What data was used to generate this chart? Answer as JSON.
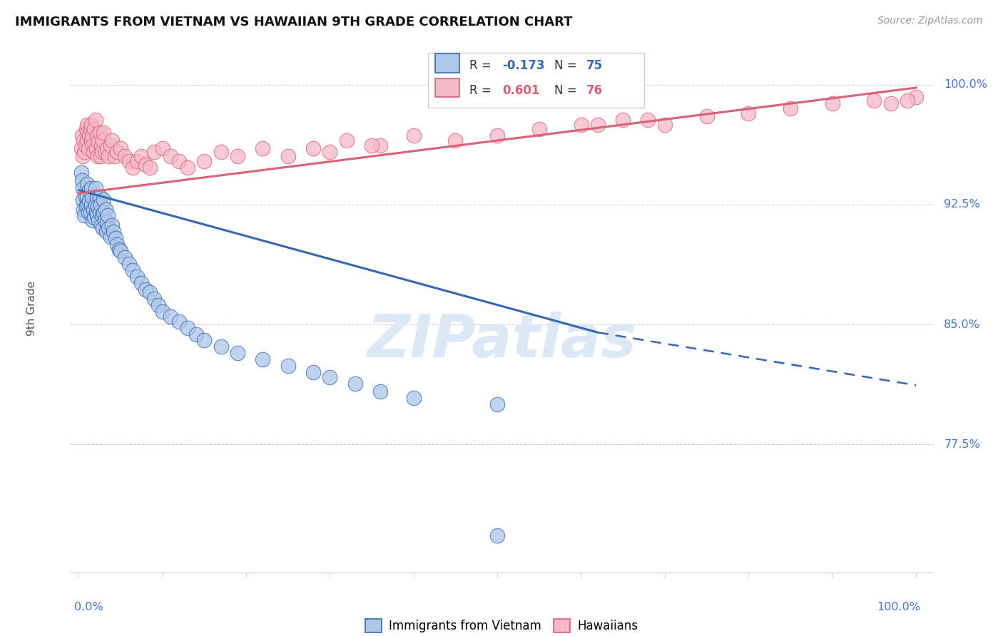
{
  "title": "IMMIGRANTS FROM VIETNAM VS HAWAIIAN 9TH GRADE CORRELATION CHART",
  "source": "Source: ZipAtlas.com",
  "ylabel": "9th Grade",
  "legend_blue_r": "-0.173",
  "legend_blue_n": "75",
  "legend_pink_r": "0.601",
  "legend_pink_n": "76",
  "blue_color": "#aec6e8",
  "pink_color": "#f4b8c8",
  "blue_line_color": "#3567b5",
  "pink_line_color": "#d9607a",
  "ytick_values": [
    0.775,
    0.85,
    0.925,
    1.0
  ],
  "ytick_labels": [
    "77.5%",
    "85.0%",
    "92.5%",
    "100.0%"
  ],
  "blue_line_start_x": 0.0,
  "blue_line_start_y": 0.934,
  "blue_line_solid_end_x": 0.62,
  "blue_line_solid_end_y": 0.845,
  "blue_line_dash_end_x": 1.0,
  "blue_line_dash_end_y": 0.812,
  "pink_line_start_x": 0.0,
  "pink_line_start_y": 0.932,
  "pink_line_end_x": 1.0,
  "pink_line_end_y": 0.998,
  "xlim_min": 0.0,
  "xlim_max": 1.0,
  "ylim_min": 0.695,
  "ylim_max": 1.025
}
